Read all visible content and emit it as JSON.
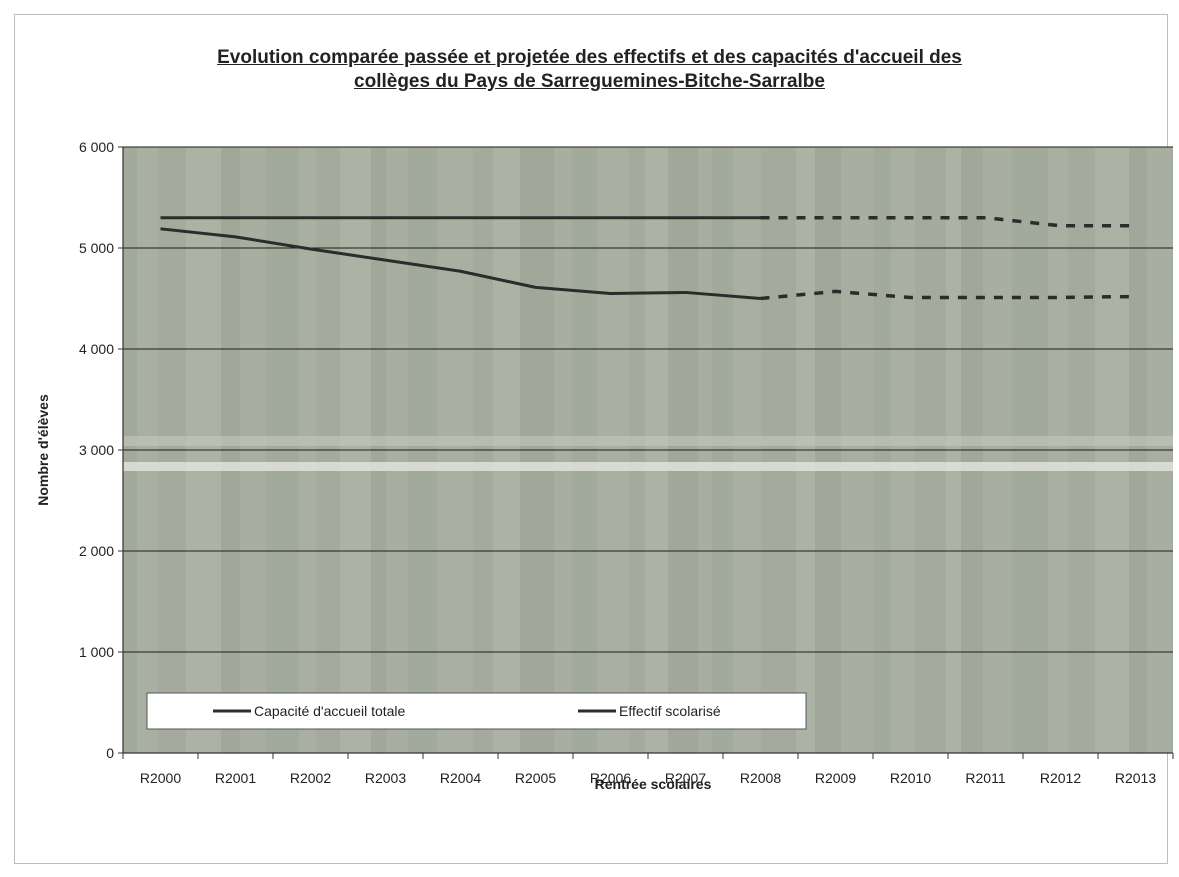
{
  "chart_data": {
    "type": "line",
    "title_lines": [
      "Evolution comparée passée et projetée des effectifs et des capacités d'accueil des",
      "collèges du Pays de Sarreguemines-Bitche-Sarralbe"
    ],
    "xlabel": "Rentrée scolaires",
    "ylabel": "Nombre d'élèves",
    "categories": [
      "R2000",
      "R2001",
      "R2002",
      "R2003",
      "R2004",
      "R2005",
      "R2006",
      "R2007",
      "R2008",
      "R2009",
      "R2010",
      "R2011",
      "R2012",
      "R2013"
    ],
    "ylim": [
      0,
      6000
    ],
    "yticks": [
      {
        "value": 0,
        "label": "0"
      },
      {
        "value": 1000,
        "label": "1 000"
      },
      {
        "value": 2000,
        "label": "2 000"
      },
      {
        "value": 3000,
        "label": "3 000"
      },
      {
        "value": 4000,
        "label": "4 000"
      },
      {
        "value": 5000,
        "label": "5 000"
      },
      {
        "value": 6000,
        "label": "6 000"
      }
    ],
    "grid": true,
    "legend_position": "bottom-left",
    "projection_starts_at": "R2008",
    "series": [
      {
        "name": "Capacité d'accueil totale",
        "values": [
          5300,
          5300,
          5300,
          5300,
          5300,
          5300,
          5300,
          5300,
          5300,
          5300,
          5300,
          5300,
          5220,
          5220
        ]
      },
      {
        "name": "Effectif scolarisé",
        "values": [
          5190,
          5110,
          4990,
          4880,
          4770,
          4610,
          4550,
          4560,
          4500,
          4570,
          4510,
          4510,
          4510,
          4520
        ]
      }
    ],
    "colors": {
      "plot_bg": "#a7ae9f",
      "line": "#2c2c2c",
      "grid": "#1e1e1e"
    }
  }
}
